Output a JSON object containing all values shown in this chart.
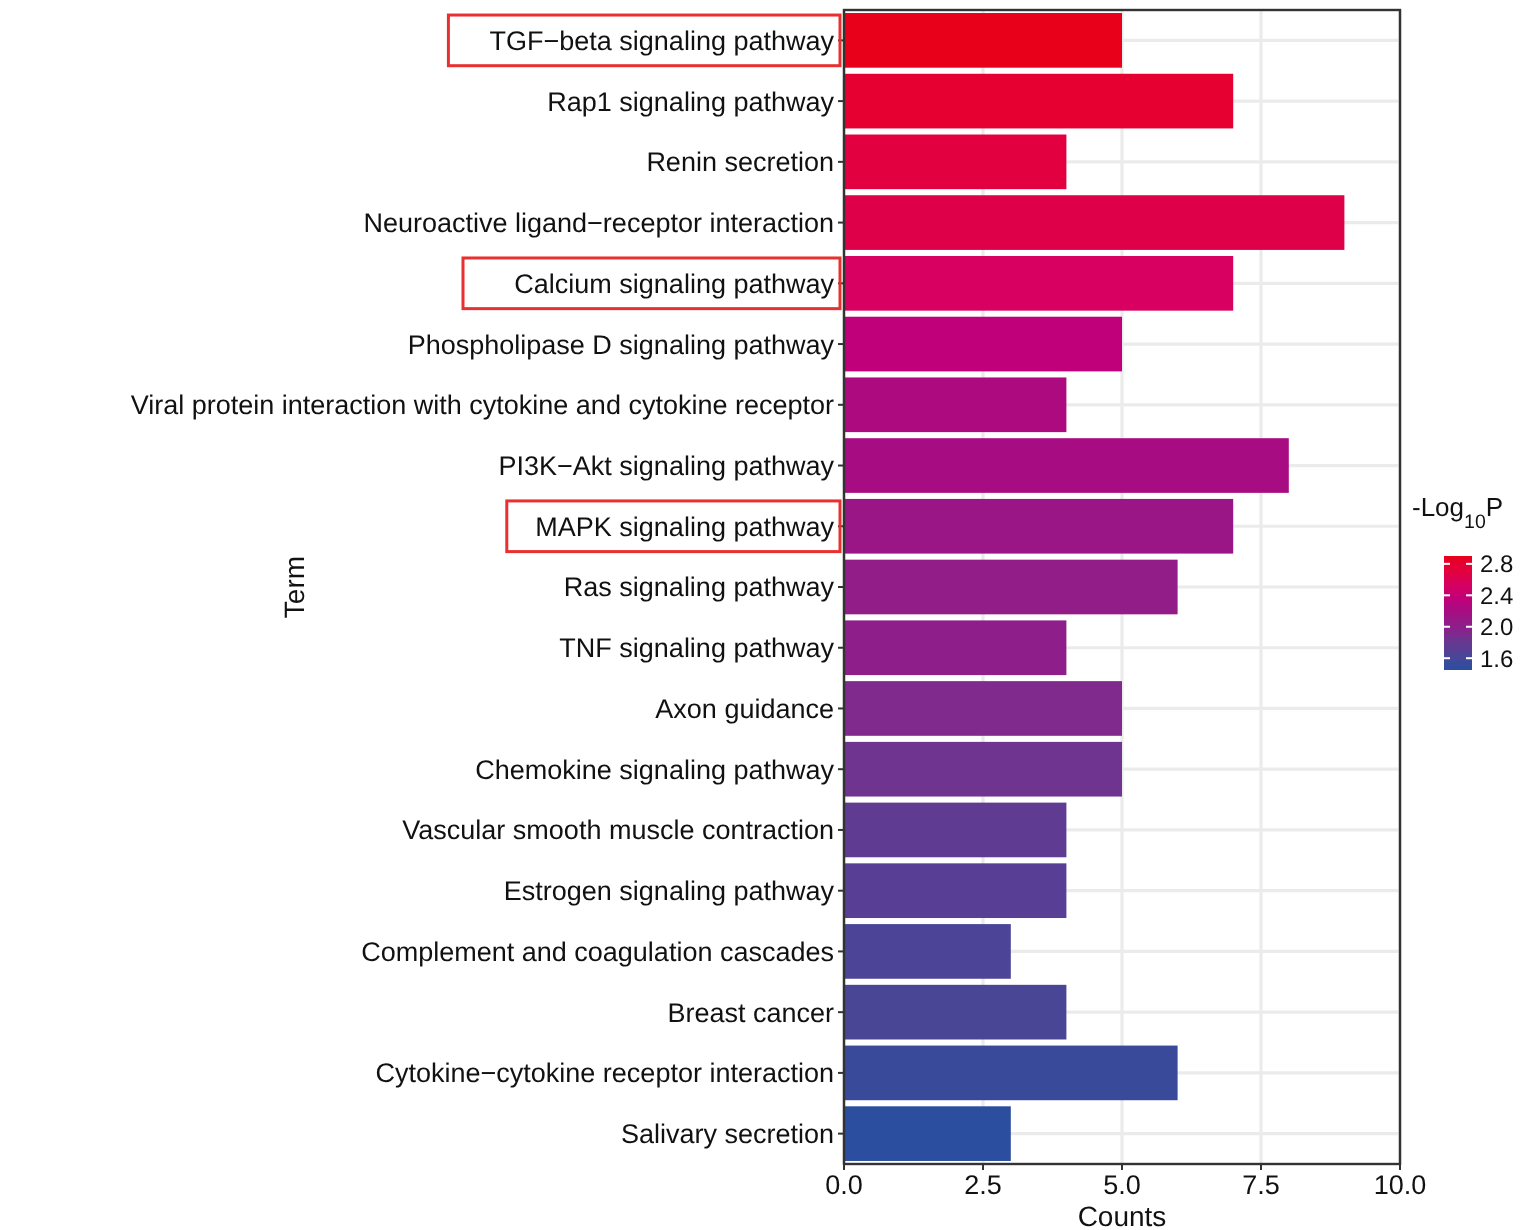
{
  "chart_data": {
    "type": "bar",
    "orientation": "horizontal",
    "xlabel": "Counts",
    "ylabel": "Term",
    "legend_title": "-Log$_{10}$P",
    "categories": [
      "TGF−beta signaling pathway",
      "Rap1 signaling pathway",
      "Renin secretion",
      "Neuroactive ligand−receptor interaction",
      "Calcium signaling pathway",
      "Phospholipase D signaling pathway",
      "Viral protein interaction with cytokine and cytokine receptor",
      "PI3K−Akt signaling pathway",
      "MAPK signaling pathway",
      "Ras signaling pathway",
      "TNF signaling pathway",
      "Axon guidance",
      "Chemokine signaling pathway",
      "Vascular smooth muscle contraction",
      "Estrogen signaling pathway",
      "Complement and coagulation cascades",
      "Breast cancer",
      "Cytokine−cytokine receptor interaction",
      "Salivary secretion"
    ],
    "values": [
      5,
      7,
      4,
      9,
      7,
      5,
      4,
      8,
      7,
      6,
      4,
      5,
      5,
      4,
      4,
      3,
      4,
      6,
      3
    ],
    "cvalues": [
      2.9,
      2.8,
      2.7,
      2.65,
      2.55,
      2.35,
      2.25,
      2.2,
      2.1,
      2.05,
      2.0,
      1.9,
      1.85,
      1.75,
      1.7,
      1.65,
      1.6,
      1.55,
      1.45
    ],
    "colors": [
      "#e8001a",
      "#e60032",
      "#e20040",
      "#de0048",
      "#d80060",
      "#c0007a",
      "#ae0a80",
      "#a80c82",
      "#9a1686",
      "#921c88",
      "#8e1e8a",
      "#7f2a8c",
      "#6e3490",
      "#5f3c92",
      "#583e94",
      "#4c4496",
      "#4a4696",
      "#3a4a9a",
      "#2b4e9e"
    ],
    "xlim": [
      0,
      10
    ],
    "xticks": [
      {
        "value": 0,
        "label": "0.0"
      },
      {
        "value": 2.5,
        "label": "2.5"
      },
      {
        "value": 5,
        "label": "5.0"
      },
      {
        "value": 7.5,
        "label": "7.5"
      },
      {
        "value": 10,
        "label": "10.0"
      }
    ],
    "clim": [
      1.45,
      2.9
    ],
    "cticks": [
      {
        "value": 1.6,
        "label": "1.6"
      },
      {
        "value": 2,
        "label": "2.0"
      },
      {
        "value": 2.4,
        "label": "2.4"
      },
      {
        "value": 2.8,
        "label": "2.8"
      }
    ],
    "grid": true
  }
}
